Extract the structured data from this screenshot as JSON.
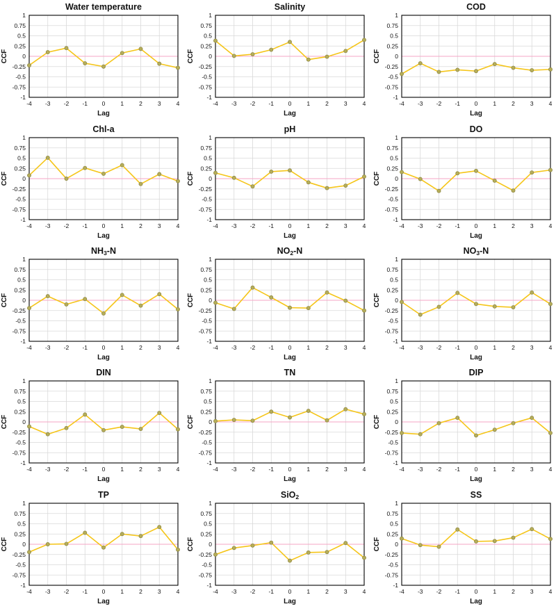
{
  "chart_data": [
    {
      "type": "line",
      "title": "Water temperature",
      "title_main": "Water temperature",
      "title_sub": "",
      "title_tail": "",
      "xlabel": "Lag",
      "ylabel": "CCF",
      "x": [
        -4,
        -3,
        -2,
        -1,
        0,
        1,
        2,
        3,
        4
      ],
      "values": [
        -0.22,
        0.1,
        0.2,
        -0.17,
        -0.25,
        0.08,
        0.18,
        -0.18,
        -0.28
      ],
      "ylim": [
        -1,
        1
      ],
      "xlim": [
        -4,
        4
      ],
      "yticks": [
        "1",
        "0.75",
        "0.5",
        "0.25",
        "0",
        "-0.25",
        "-0.5",
        "-0.75",
        "-1"
      ],
      "xticks": [
        "-4",
        "-3",
        "-2",
        "-1",
        "0",
        "1",
        "2",
        "3",
        "4"
      ],
      "line_color": "#f5c518",
      "marker_color": "#b5ad5a",
      "zero_line_color": "#f4a6c6"
    },
    {
      "type": "line",
      "title": "Salinity",
      "title_main": "Salinity",
      "title_sub": "",
      "title_tail": "",
      "xlabel": "Lag",
      "ylabel": "CCF",
      "x": [
        -4,
        -3,
        -2,
        -1,
        0,
        1,
        2,
        3,
        4
      ],
      "values": [
        0.38,
        0.01,
        0.05,
        0.16,
        0.35,
        -0.08,
        -0.01,
        0.13,
        0.4
      ],
      "ylim": [
        -1,
        1
      ],
      "xlim": [
        -4,
        4
      ],
      "yticks": [
        "1",
        "0.75",
        "0.5",
        "0.25",
        "0",
        "-0.25",
        "-0.5",
        "-0.75",
        "-1"
      ],
      "xticks": [
        "-4",
        "-3",
        "-2",
        "-1",
        "0",
        "1",
        "2",
        "3",
        "4"
      ],
      "line_color": "#f5c518",
      "marker_color": "#b5ad5a",
      "zero_line_color": "#f4a6c6"
    },
    {
      "type": "line",
      "title": "COD",
      "title_main": "COD",
      "title_sub": "",
      "title_tail": "",
      "xlabel": "Lag",
      "ylabel": "CCF",
      "x": [
        -4,
        -3,
        -2,
        -1,
        0,
        1,
        2,
        3,
        4
      ],
      "values": [
        -0.43,
        -0.17,
        -0.38,
        -0.33,
        -0.36,
        -0.19,
        -0.28,
        -0.34,
        -0.32
      ],
      "ylim": [
        -1,
        1
      ],
      "xlim": [
        -4,
        4
      ],
      "yticks": [
        "1",
        "0.75",
        "0.5",
        "0.25",
        "0",
        "-0.25",
        "-0.5",
        "-0.75",
        "-1"
      ],
      "xticks": [
        "-4",
        "-3",
        "-2",
        "-1",
        "0",
        "1",
        "2",
        "3",
        "4"
      ],
      "line_color": "#f5c518",
      "marker_color": "#b5ad5a",
      "zero_line_color": "#f4a6c6"
    },
    {
      "type": "line",
      "title": "Chl-a",
      "title_main": "Chl-a",
      "title_sub": "",
      "title_tail": "",
      "xlabel": "Lag",
      "ylabel": "CCF",
      "x": [
        -4,
        -3,
        -2,
        -1,
        0,
        1,
        2,
        3,
        4
      ],
      "values": [
        0.08,
        0.51,
        0.0,
        0.26,
        0.12,
        0.33,
        -0.13,
        0.11,
        -0.06
      ],
      "ylim": [
        -1,
        1
      ],
      "xlim": [
        -4,
        4
      ],
      "yticks": [
        "1",
        "0.75",
        "0.5",
        "0.25",
        "0",
        "-0.25",
        "-0.5",
        "-0.75",
        "-1"
      ],
      "xticks": [
        "-4",
        "-3",
        "-2",
        "-1",
        "0",
        "1",
        "2",
        "3",
        "4"
      ],
      "line_color": "#f5c518",
      "marker_color": "#b5ad5a",
      "zero_line_color": "#f4a6c6"
    },
    {
      "type": "line",
      "title": "pH",
      "title_main": "pH",
      "title_sub": "",
      "title_tail": "",
      "xlabel": "Lag",
      "ylabel": "CCF",
      "x": [
        -4,
        -3,
        -2,
        -1,
        0,
        1,
        2,
        3,
        4
      ],
      "values": [
        0.14,
        0.02,
        -0.19,
        0.17,
        0.2,
        -0.09,
        -0.23,
        -0.17,
        0.05
      ],
      "ylim": [
        -1,
        1
      ],
      "xlim": [
        -4,
        4
      ],
      "yticks": [
        "1",
        "0.75",
        "0.5",
        "0.25",
        "0",
        "-0.25",
        "-0.5",
        "-0.75",
        "-1"
      ],
      "xticks": [
        "-4",
        "-3",
        "-2",
        "-1",
        "0",
        "1",
        "2",
        "3",
        "4"
      ],
      "line_color": "#f5c518",
      "marker_color": "#b5ad5a",
      "zero_line_color": "#f4a6c6"
    },
    {
      "type": "line",
      "title": "DO",
      "title_main": "DO",
      "title_sub": "",
      "title_tail": "",
      "xlabel": "Lag",
      "ylabel": "CCF",
      "x": [
        -4,
        -3,
        -2,
        -1,
        0,
        1,
        2,
        3,
        4
      ],
      "values": [
        0.16,
        -0.01,
        -0.3,
        0.13,
        0.19,
        -0.05,
        -0.29,
        0.15,
        0.21
      ],
      "ylim": [
        -1,
        1
      ],
      "xlim": [
        -4,
        4
      ],
      "yticks": [
        "1",
        "0.75",
        "0.5",
        "0.25",
        "0",
        "-0.25",
        "-0.5",
        "-0.75",
        "-1"
      ],
      "xticks": [
        "-4",
        "-3",
        "-2",
        "-1",
        "0",
        "1",
        "2",
        "3",
        "4"
      ],
      "line_color": "#f5c518",
      "marker_color": "#b5ad5a",
      "zero_line_color": "#f4a6c6"
    },
    {
      "type": "line",
      "title": "NH3-N",
      "title_main": "NH",
      "title_sub": "3",
      "title_tail": "-N",
      "xlabel": "Lag",
      "ylabel": "CCF",
      "x": [
        -4,
        -3,
        -2,
        -1,
        0,
        1,
        2,
        3,
        4
      ],
      "values": [
        -0.19,
        0.1,
        -0.1,
        0.03,
        -0.32,
        0.13,
        -0.13,
        0.15,
        -0.22
      ],
      "ylim": [
        -1,
        1
      ],
      "xlim": [
        -4,
        4
      ],
      "yticks": [
        "1",
        "0.75",
        "0.5",
        "0.25",
        "0",
        "-0.25",
        "-0.5",
        "-0.75",
        "-1"
      ],
      "xticks": [
        "-4",
        "-3",
        "-2",
        "-1",
        "0",
        "1",
        "2",
        "3",
        "4"
      ],
      "line_color": "#f5c518",
      "marker_color": "#b5ad5a",
      "zero_line_color": "#f4a6c6"
    },
    {
      "type": "line",
      "title": "NO2-N",
      "title_main": "NO",
      "title_sub": "2",
      "title_tail": "-N",
      "xlabel": "Lag",
      "ylabel": "CCF",
      "x": [
        -4,
        -3,
        -2,
        -1,
        0,
        1,
        2,
        3,
        4
      ],
      "values": [
        -0.06,
        -0.21,
        0.31,
        0.07,
        -0.18,
        -0.19,
        0.19,
        -0.01,
        -0.25
      ],
      "ylim": [
        -1,
        1
      ],
      "xlim": [
        -4,
        4
      ],
      "yticks": [
        "1",
        "0.75",
        "0.5",
        "0.25",
        "0",
        "-0.25",
        "-0.5",
        "-0.75",
        "-1"
      ],
      "xticks": [
        "-4",
        "-3",
        "-2",
        "-1",
        "0",
        "1",
        "2",
        "3",
        "4"
      ],
      "line_color": "#f5c518",
      "marker_color": "#b5ad5a",
      "zero_line_color": "#f4a6c6"
    },
    {
      "type": "line",
      "title": "NO3-N",
      "title_main": "NO",
      "title_sub": "3",
      "title_tail": "-N",
      "xlabel": "Lag",
      "ylabel": "CCF",
      "x": [
        -4,
        -3,
        -2,
        -1,
        0,
        1,
        2,
        3,
        4
      ],
      "values": [
        -0.04,
        -0.35,
        -0.16,
        0.18,
        -0.09,
        -0.15,
        -0.17,
        0.19,
        -0.09
      ],
      "ylim": [
        -1,
        1
      ],
      "xlim": [
        -4,
        4
      ],
      "yticks": [
        "1",
        "0.75",
        "0.5",
        "0.25",
        "0",
        "-0.25",
        "-0.5",
        "-0.75",
        "-1"
      ],
      "xticks": [
        "-4",
        "-3",
        "-2",
        "-1",
        "0",
        "1",
        "2",
        "3",
        "4"
      ],
      "line_color": "#f5c518",
      "marker_color": "#b5ad5a",
      "zero_line_color": "#f4a6c6"
    },
    {
      "type": "line",
      "title": "DIN",
      "title_main": "DIN",
      "title_sub": "",
      "title_tail": "",
      "xlabel": "Lag",
      "ylabel": "CCF",
      "x": [
        -4,
        -3,
        -2,
        -1,
        0,
        1,
        2,
        3,
        4
      ],
      "values": [
        -0.11,
        -0.3,
        -0.15,
        0.18,
        -0.2,
        -0.12,
        -0.17,
        0.22,
        -0.18
      ],
      "ylim": [
        -1,
        1
      ],
      "xlim": [
        -4,
        4
      ],
      "yticks": [
        "1",
        "0.75",
        "0.5",
        "0.25",
        "0",
        "-0.25",
        "-0.5",
        "-0.75",
        "-1"
      ],
      "xticks": [
        "-4",
        "-3",
        "-2",
        "-1",
        "0",
        "1",
        "2",
        "3",
        "4"
      ],
      "line_color": "#f5c518",
      "marker_color": "#b5ad5a",
      "zero_line_color": "#f4a6c6"
    },
    {
      "type": "line",
      "title": "TN",
      "title_main": "TN",
      "title_sub": "",
      "title_tail": "",
      "xlabel": "Lag",
      "ylabel": "CCF",
      "x": [
        -4,
        -3,
        -2,
        -1,
        0,
        1,
        2,
        3,
        4
      ],
      "values": [
        0.02,
        0.05,
        0.03,
        0.25,
        0.11,
        0.27,
        0.04,
        0.31,
        0.19
      ],
      "ylim": [
        -1,
        1
      ],
      "xlim": [
        -4,
        4
      ],
      "yticks": [
        "1",
        "0.75",
        "0.5",
        "0.25",
        "0",
        "-0.25",
        "-0.5",
        "-0.75",
        "-1"
      ],
      "xticks": [
        "-4",
        "-3",
        "-2",
        "-1",
        "0",
        "1",
        "2",
        "3",
        "4"
      ],
      "line_color": "#f5c518",
      "marker_color": "#b5ad5a",
      "zero_line_color": "#f4a6c6"
    },
    {
      "type": "line",
      "title": "DIP",
      "title_main": "DIP",
      "title_sub": "",
      "title_tail": "",
      "xlabel": "Lag",
      "ylabel": "CCF",
      "x": [
        -4,
        -3,
        -2,
        -1,
        0,
        1,
        2,
        3,
        4
      ],
      "values": [
        -0.27,
        -0.3,
        -0.03,
        0.1,
        -0.33,
        -0.19,
        -0.03,
        0.1,
        -0.27
      ],
      "ylim": [
        -1,
        1
      ],
      "xlim": [
        -4,
        4
      ],
      "yticks": [
        "1",
        "0.75",
        "0.5",
        "0.25",
        "0",
        "-0.25",
        "-0.5",
        "-0.75",
        "-1"
      ],
      "xticks": [
        "-4",
        "-3",
        "-2",
        "-1",
        "0",
        "1",
        "2",
        "3",
        "4"
      ],
      "line_color": "#f5c518",
      "marker_color": "#b5ad5a",
      "zero_line_color": "#f4a6c6"
    },
    {
      "type": "line",
      "title": "TP",
      "title_main": "TP",
      "title_sub": "",
      "title_tail": "",
      "xlabel": "Lag",
      "ylabel": "CCF",
      "x": [
        -4,
        -3,
        -2,
        -1,
        0,
        1,
        2,
        3,
        4
      ],
      "values": [
        -0.19,
        0.0,
        0.01,
        0.28,
        -0.08,
        0.25,
        0.2,
        0.42,
        -0.13
      ],
      "ylim": [
        -1,
        1
      ],
      "xlim": [
        -4,
        4
      ],
      "yticks": [
        "1",
        "0.75",
        "0.5",
        "0.25",
        "0",
        "-0.25",
        "-0.5",
        "-0.75",
        "-1"
      ],
      "xticks": [
        "-4",
        "-3",
        "-2",
        "-1",
        "0",
        "1",
        "2",
        "3",
        "4"
      ],
      "line_color": "#f5c518",
      "marker_color": "#b5ad5a",
      "zero_line_color": "#f4a6c6"
    },
    {
      "type": "line",
      "title": "SiO2",
      "title_main": "SiO",
      "title_sub": "2",
      "title_tail": "",
      "xlabel": "Lag",
      "ylabel": "CCF",
      "x": [
        -4,
        -3,
        -2,
        -1,
        0,
        1,
        2,
        3,
        4
      ],
      "values": [
        -0.25,
        -0.09,
        -0.03,
        0.04,
        -0.4,
        -0.2,
        -0.19,
        0.03,
        -0.33
      ],
      "ylim": [
        -1,
        1
      ],
      "xlim": [
        -4,
        4
      ],
      "yticks": [
        "1",
        "0.75",
        "0.5",
        "0.25",
        "0",
        "-0.25",
        "-0.5",
        "-0.75",
        "-1"
      ],
      "xticks": [
        "-4",
        "-3",
        "-2",
        "-1",
        "0",
        "1",
        "2",
        "3",
        "4"
      ],
      "line_color": "#f5c518",
      "marker_color": "#b5ad5a",
      "zero_line_color": "#f4a6c6"
    },
    {
      "type": "line",
      "title": "SS",
      "title_main": "SS",
      "title_sub": "",
      "title_tail": "",
      "xlabel": "Lag",
      "ylabel": "CCF",
      "x": [
        -4,
        -3,
        -2,
        -1,
        0,
        1,
        2,
        3,
        4
      ],
      "values": [
        0.14,
        -0.02,
        -0.06,
        0.36,
        0.07,
        0.08,
        0.16,
        0.37,
        0.13
      ],
      "ylim": [
        -1,
        1
      ],
      "xlim": [
        -4,
        4
      ],
      "yticks": [
        "1",
        "0.75",
        "0.5",
        "0.25",
        "0",
        "-0.25",
        "-0.5",
        "-0.75",
        "-1"
      ],
      "xticks": [
        "-4",
        "-3",
        "-2",
        "-1",
        "0",
        "1",
        "2",
        "3",
        "4"
      ],
      "line_color": "#f5c518",
      "marker_color": "#b5ad5a",
      "zero_line_color": "#f4a6c6"
    }
  ]
}
